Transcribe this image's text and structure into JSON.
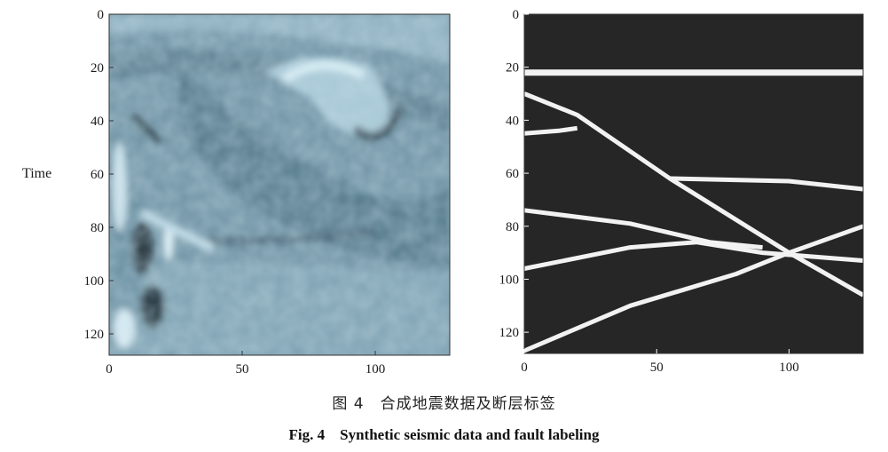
{
  "figure": {
    "caption_cn": "图 4　合成地震数据及断层标签",
    "caption_en": "Fig. 4　Synthetic seismic data and fault labeling"
  },
  "chart_data": [
    {
      "type": "heatmap",
      "title": "",
      "ylabel": "Time",
      "xlabel": "",
      "x_ticks": [
        "0",
        "50",
        "100"
      ],
      "y_ticks": [
        "0",
        "20",
        "40",
        "60",
        "80",
        "100",
        "120"
      ],
      "xlim": [
        0,
        128
      ],
      "ylim": [
        128,
        0
      ],
      "colormap": [
        "#1f2e38",
        "#5d7f90",
        "#8fb2c3",
        "#dbeef6"
      ],
      "description_of_content": "synthetic seismic amplitude image"
    },
    {
      "type": "heatmap",
      "title": "",
      "ylabel": "",
      "xlabel": "",
      "x_ticks": [
        "0",
        "50",
        "100"
      ],
      "y_ticks": [
        "0",
        "20",
        "40",
        "60",
        "80",
        "100",
        "120"
      ],
      "xlim": [
        0,
        128
      ],
      "ylim": [
        128,
        0
      ],
      "background": "#262626",
      "line_color": "#f2f2f2",
      "fault_lines": [
        [
          [
            0,
            22
          ],
          [
            128,
            22
          ]
        ],
        [
          [
            0,
            45
          ],
          [
            13,
            44
          ],
          [
            20,
            43
          ]
        ],
        [
          [
            0,
            30
          ],
          [
            20,
            38
          ],
          [
            55,
            62
          ],
          [
            100,
            90
          ],
          [
            128,
            106
          ]
        ],
        [
          [
            55,
            62
          ],
          [
            100,
            63
          ],
          [
            128,
            66
          ]
        ],
        [
          [
            0,
            74
          ],
          [
            40,
            79
          ],
          [
            70,
            86
          ],
          [
            90,
            88
          ]
        ],
        [
          [
            0,
            96
          ],
          [
            40,
            88
          ],
          [
            65,
            86
          ],
          [
            90,
            90
          ],
          [
            128,
            93
          ]
        ],
        [
          [
            0,
            127
          ],
          [
            40,
            110
          ],
          [
            80,
            98
          ],
          [
            100,
            90
          ],
          [
            128,
            80
          ]
        ]
      ]
    }
  ]
}
